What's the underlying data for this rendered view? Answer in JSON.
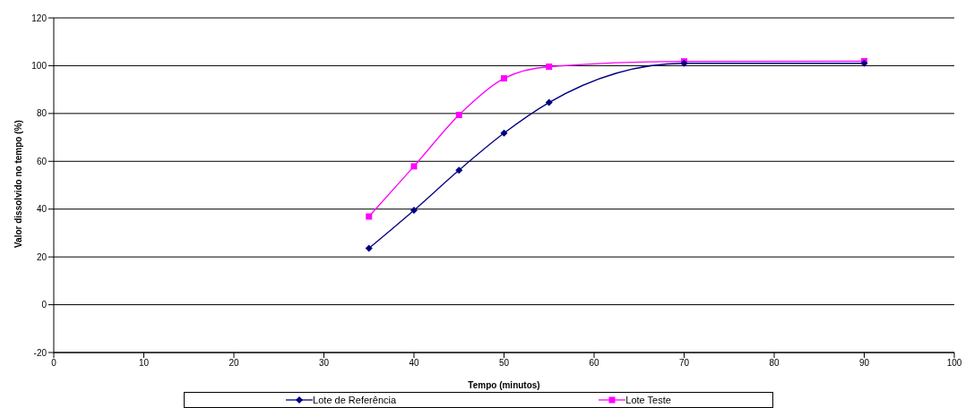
{
  "chart_data": {
    "type": "line",
    "xlabel": "Tempo (minutos)",
    "ylabel": "Valor dissolvido no tempo (%)",
    "x": [
      35,
      40,
      45,
      50,
      55,
      70,
      90
    ],
    "series": [
      {
        "name": "Lote de Referência",
        "color": "#000080",
        "marker": "diamond",
        "values": [
          23.6,
          39.5,
          56.3,
          71.8,
          84.6,
          101,
          101
        ]
      },
      {
        "name": "Lote Teste",
        "color": "#ff00ff",
        "marker": "square",
        "values": [
          36.9,
          57.9,
          79.4,
          94.7,
          99.6,
          101.8,
          101.9
        ]
      }
    ],
    "xlim": [
      0,
      100
    ],
    "xticks": [
      0,
      10,
      20,
      30,
      40,
      50,
      60,
      70,
      80,
      90,
      100
    ],
    "ylim": [
      -20,
      120
    ],
    "yticks": [
      -20,
      0,
      20,
      40,
      60,
      80,
      100,
      120
    ],
    "grid": "y",
    "legend": "bottom",
    "line_style": "solid"
  }
}
